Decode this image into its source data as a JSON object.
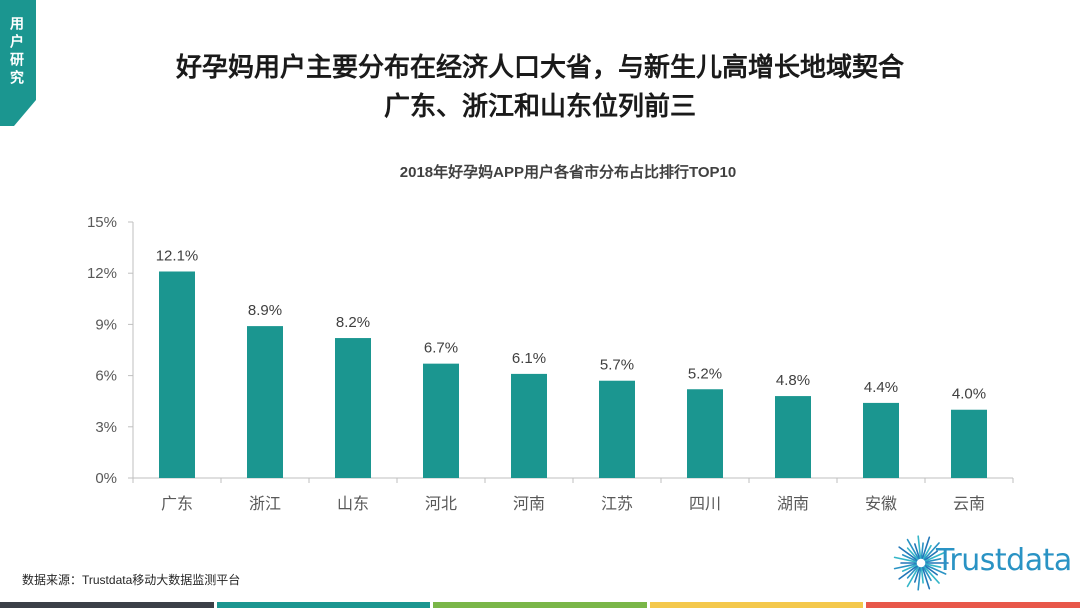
{
  "tab": {
    "label": "用户研究",
    "color": "#1b9690"
  },
  "header": {
    "title_line1": "好孕妈用户主要分布在经济人口大省，与新生儿高增长地域契合",
    "title_line2": "广东、浙江和山东位列前三"
  },
  "chart_data": {
    "type": "bar",
    "title": "2018年好孕妈APP用户各省市分布占比排行TOP10",
    "categories": [
      "广东",
      "浙江",
      "山东",
      "河北",
      "河南",
      "江苏",
      "四川",
      "湖南",
      "安徽",
      "云南"
    ],
    "values": [
      12.1,
      8.9,
      8.2,
      6.7,
      6.1,
      5.7,
      5.2,
      4.8,
      4.4,
      4.0
    ],
    "value_labels": [
      "12.1%",
      "8.9%",
      "8.2%",
      "6.7%",
      "6.1%",
      "5.7%",
      "5.2%",
      "4.8%",
      "4.4%",
      "4.0%"
    ],
    "ylim": [
      0,
      15
    ],
    "yticks": [
      0,
      3,
      6,
      9,
      12,
      15
    ],
    "ytick_labels": [
      "0%",
      "3%",
      "6%",
      "9%",
      "12%",
      "15%"
    ],
    "xlabel": "",
    "ylabel": "",
    "grid": false,
    "legend": false,
    "bar_color": "#1b9690"
  },
  "footer": {
    "source": "数据来源：Trustdata移动大数据监测平台",
    "logo_text": "Trustdata",
    "logo_icon": "sunburst-icon"
  },
  "colors": {
    "accent": "#1b9690",
    "logo": "#2a93c4",
    "axis": "#bfbfbf",
    "text": "#595959"
  },
  "bottom_stripe": [
    "#3b3f47",
    "#1b9690",
    "#7ab648",
    "#f4c84c",
    "#e8574a"
  ]
}
